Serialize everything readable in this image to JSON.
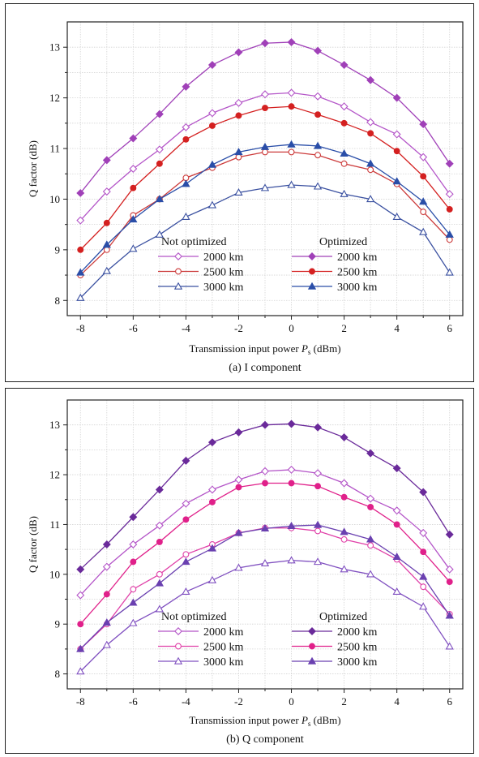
{
  "chart_data": [
    {
      "type": "line",
      "caption": "(a) I component",
      "xlabel_main": "Transmission input power ",
      "xlabel_var": "P",
      "xlabel_sub": "s",
      "xlabel_unit": " (dBm)",
      "ylabel": "Q factor (dB)",
      "xlim": [
        -8.5,
        6.5
      ],
      "ylim": [
        7.7,
        13.5
      ],
      "xticks": [
        -8,
        -6,
        -4,
        -2,
        0,
        2,
        4,
        6
      ],
      "yticks": [
        8,
        9,
        10,
        11,
        12,
        13
      ],
      "legend_left_title": "Not optimized",
      "legend_right_title": "Optimized",
      "x": [
        -8,
        -7,
        -6,
        -5,
        -4,
        -3,
        -2,
        -1,
        0,
        1,
        2,
        3,
        4,
        5,
        6
      ],
      "series": [
        {
          "name": "2000 km",
          "group": "not",
          "color": "#b455c8",
          "marker": "diamond-open",
          "values": [
            9.58,
            10.15,
            10.6,
            10.98,
            11.42,
            11.7,
            11.9,
            12.07,
            12.1,
            12.03,
            11.83,
            11.52,
            11.28,
            10.83,
            10.1
          ]
        },
        {
          "name": "2500 km",
          "group": "not",
          "color": "#cc3a3a",
          "marker": "circle-open",
          "values": [
            8.5,
            9.0,
            9.68,
            10.0,
            10.42,
            10.62,
            10.83,
            10.93,
            10.93,
            10.87,
            10.7,
            10.58,
            10.3,
            9.75,
            9.2
          ]
        },
        {
          "name": "3000 km",
          "group": "not",
          "color": "#3a50a0",
          "marker": "triangle-open",
          "values": [
            8.05,
            8.58,
            9.02,
            9.3,
            9.65,
            9.88,
            10.13,
            10.22,
            10.28,
            10.25,
            10.1,
            10.0,
            9.65,
            9.35,
            8.55
          ]
        },
        {
          "name": "2000 km",
          "group": "opt",
          "color": "#a040b8",
          "marker": "diamond",
          "values": [
            10.12,
            10.77,
            11.2,
            11.68,
            12.22,
            12.65,
            12.9,
            13.08,
            13.1,
            12.93,
            12.65,
            12.35,
            12.0,
            11.48,
            10.7
          ]
        },
        {
          "name": "2500 km",
          "group": "opt",
          "color": "#d42020",
          "marker": "circle",
          "values": [
            9.0,
            9.53,
            10.22,
            10.7,
            11.18,
            11.45,
            11.65,
            11.8,
            11.83,
            11.67,
            11.5,
            11.3,
            10.95,
            10.45,
            9.8
          ]
        },
        {
          "name": "3000 km",
          "group": "opt",
          "color": "#2a4ea8",
          "marker": "triangle",
          "values": [
            8.55,
            9.1,
            9.6,
            10.0,
            10.3,
            10.68,
            10.93,
            11.03,
            11.08,
            11.05,
            10.9,
            10.7,
            10.35,
            9.95,
            9.3
          ]
        }
      ]
    },
    {
      "type": "line",
      "caption": "(b) Q component",
      "xlabel_main": "Transmission input power ",
      "xlabel_var": "P",
      "xlabel_sub": "s",
      "xlabel_unit": " (dBm)",
      "ylabel": "Q factor (dB)",
      "xlim": [
        -8.5,
        6.5
      ],
      "ylim": [
        7.7,
        13.5
      ],
      "xticks": [
        -8,
        -6,
        -4,
        -2,
        0,
        2,
        4,
        6
      ],
      "yticks": [
        8,
        9,
        10,
        11,
        12,
        13
      ],
      "legend_left_title": "Not optimized",
      "legend_right_title": "Optimized",
      "x": [
        -8,
        -7,
        -6,
        -5,
        -4,
        -3,
        -2,
        -1,
        0,
        1,
        2,
        3,
        4,
        5,
        6
      ],
      "series": [
        {
          "name": "2000 km",
          "group": "not",
          "color": "#b455c8",
          "marker": "diamond-open",
          "values": [
            9.58,
            10.15,
            10.6,
            10.98,
            11.42,
            11.7,
            11.9,
            12.07,
            12.1,
            12.03,
            11.83,
            11.52,
            11.28,
            10.83,
            10.1
          ]
        },
        {
          "name": "2500 km",
          "group": "not",
          "color": "#e040a8",
          "marker": "circle-open",
          "values": [
            8.5,
            9.0,
            9.7,
            10.0,
            10.4,
            10.6,
            10.83,
            10.93,
            10.93,
            10.87,
            10.7,
            10.58,
            10.3,
            9.75,
            9.2
          ]
        },
        {
          "name": "3000 km",
          "group": "not",
          "color": "#8050c0",
          "marker": "triangle-open",
          "values": [
            8.05,
            8.58,
            9.02,
            9.3,
            9.65,
            9.88,
            10.13,
            10.22,
            10.28,
            10.25,
            10.1,
            10.0,
            9.65,
            9.35,
            8.55
          ]
        },
        {
          "name": "2000 km",
          "group": "opt",
          "color": "#6a2a9a",
          "marker": "diamond",
          "values": [
            10.1,
            10.6,
            11.15,
            11.7,
            12.28,
            12.65,
            12.85,
            13.0,
            13.02,
            12.95,
            12.75,
            12.43,
            12.13,
            11.65,
            10.8
          ]
        },
        {
          "name": "2500 km",
          "group": "opt",
          "color": "#e0208a",
          "marker": "circle",
          "values": [
            9.0,
            9.6,
            10.25,
            10.65,
            11.1,
            11.45,
            11.75,
            11.83,
            11.83,
            11.77,
            11.55,
            11.35,
            11.0,
            10.45,
            9.85
          ]
        },
        {
          "name": "3000 km",
          "group": "opt",
          "color": "#6a40b0",
          "marker": "triangle",
          "values": [
            8.5,
            9.03,
            9.43,
            9.82,
            10.25,
            10.52,
            10.83,
            10.92,
            10.97,
            10.99,
            10.85,
            10.7,
            10.35,
            9.95,
            9.17
          ]
        }
      ]
    }
  ]
}
